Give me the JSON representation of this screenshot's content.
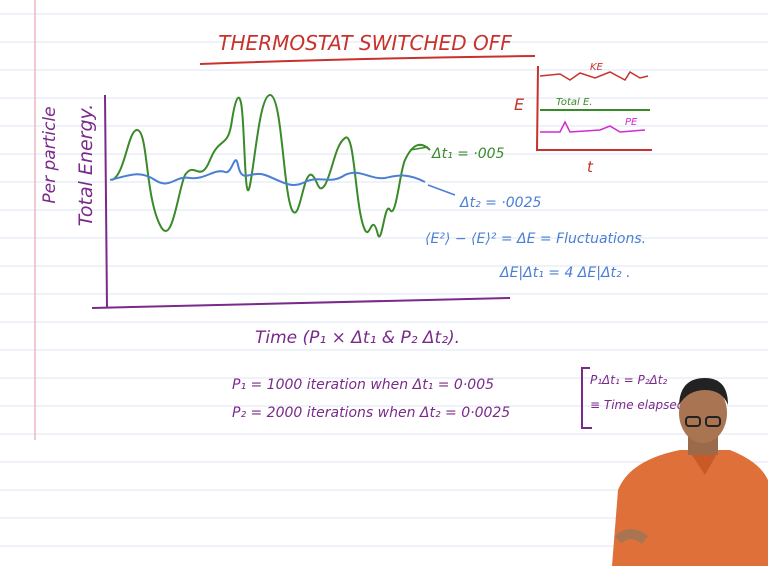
{
  "header": {
    "title": "THERMOSTAT SWITCHED OFF"
  },
  "plot": {
    "y_labels": [
      "Per particle",
      "Total Energy."
    ],
    "curves": [
      {
        "label": "Δt₁ = ·005"
      },
      {
        "label": "Δt₂ = ·0025"
      }
    ],
    "x_label": "Time (P₁ × Δt₁ & P₂ Δt₂)."
  },
  "inset": {
    "y_label": "E",
    "x_label": "t",
    "curves": [
      "KE",
      "Total E.",
      "PE"
    ]
  },
  "notes": [
    "⟨E²⟩ − ⟨E⟩² = ΔE = Fluctuations.",
    "ΔE|Δt₁ = 4 ΔE|Δt₂ .",
    "P₁ = 1000 iteration when Δt₁ = 0·005",
    "P₂ = 2000 iterations when Δt₂ = 0·0025"
  ],
  "side_note": [
    "P₁Δt₁ = P₂Δt₂",
    "≡ Time elapsed"
  ]
}
